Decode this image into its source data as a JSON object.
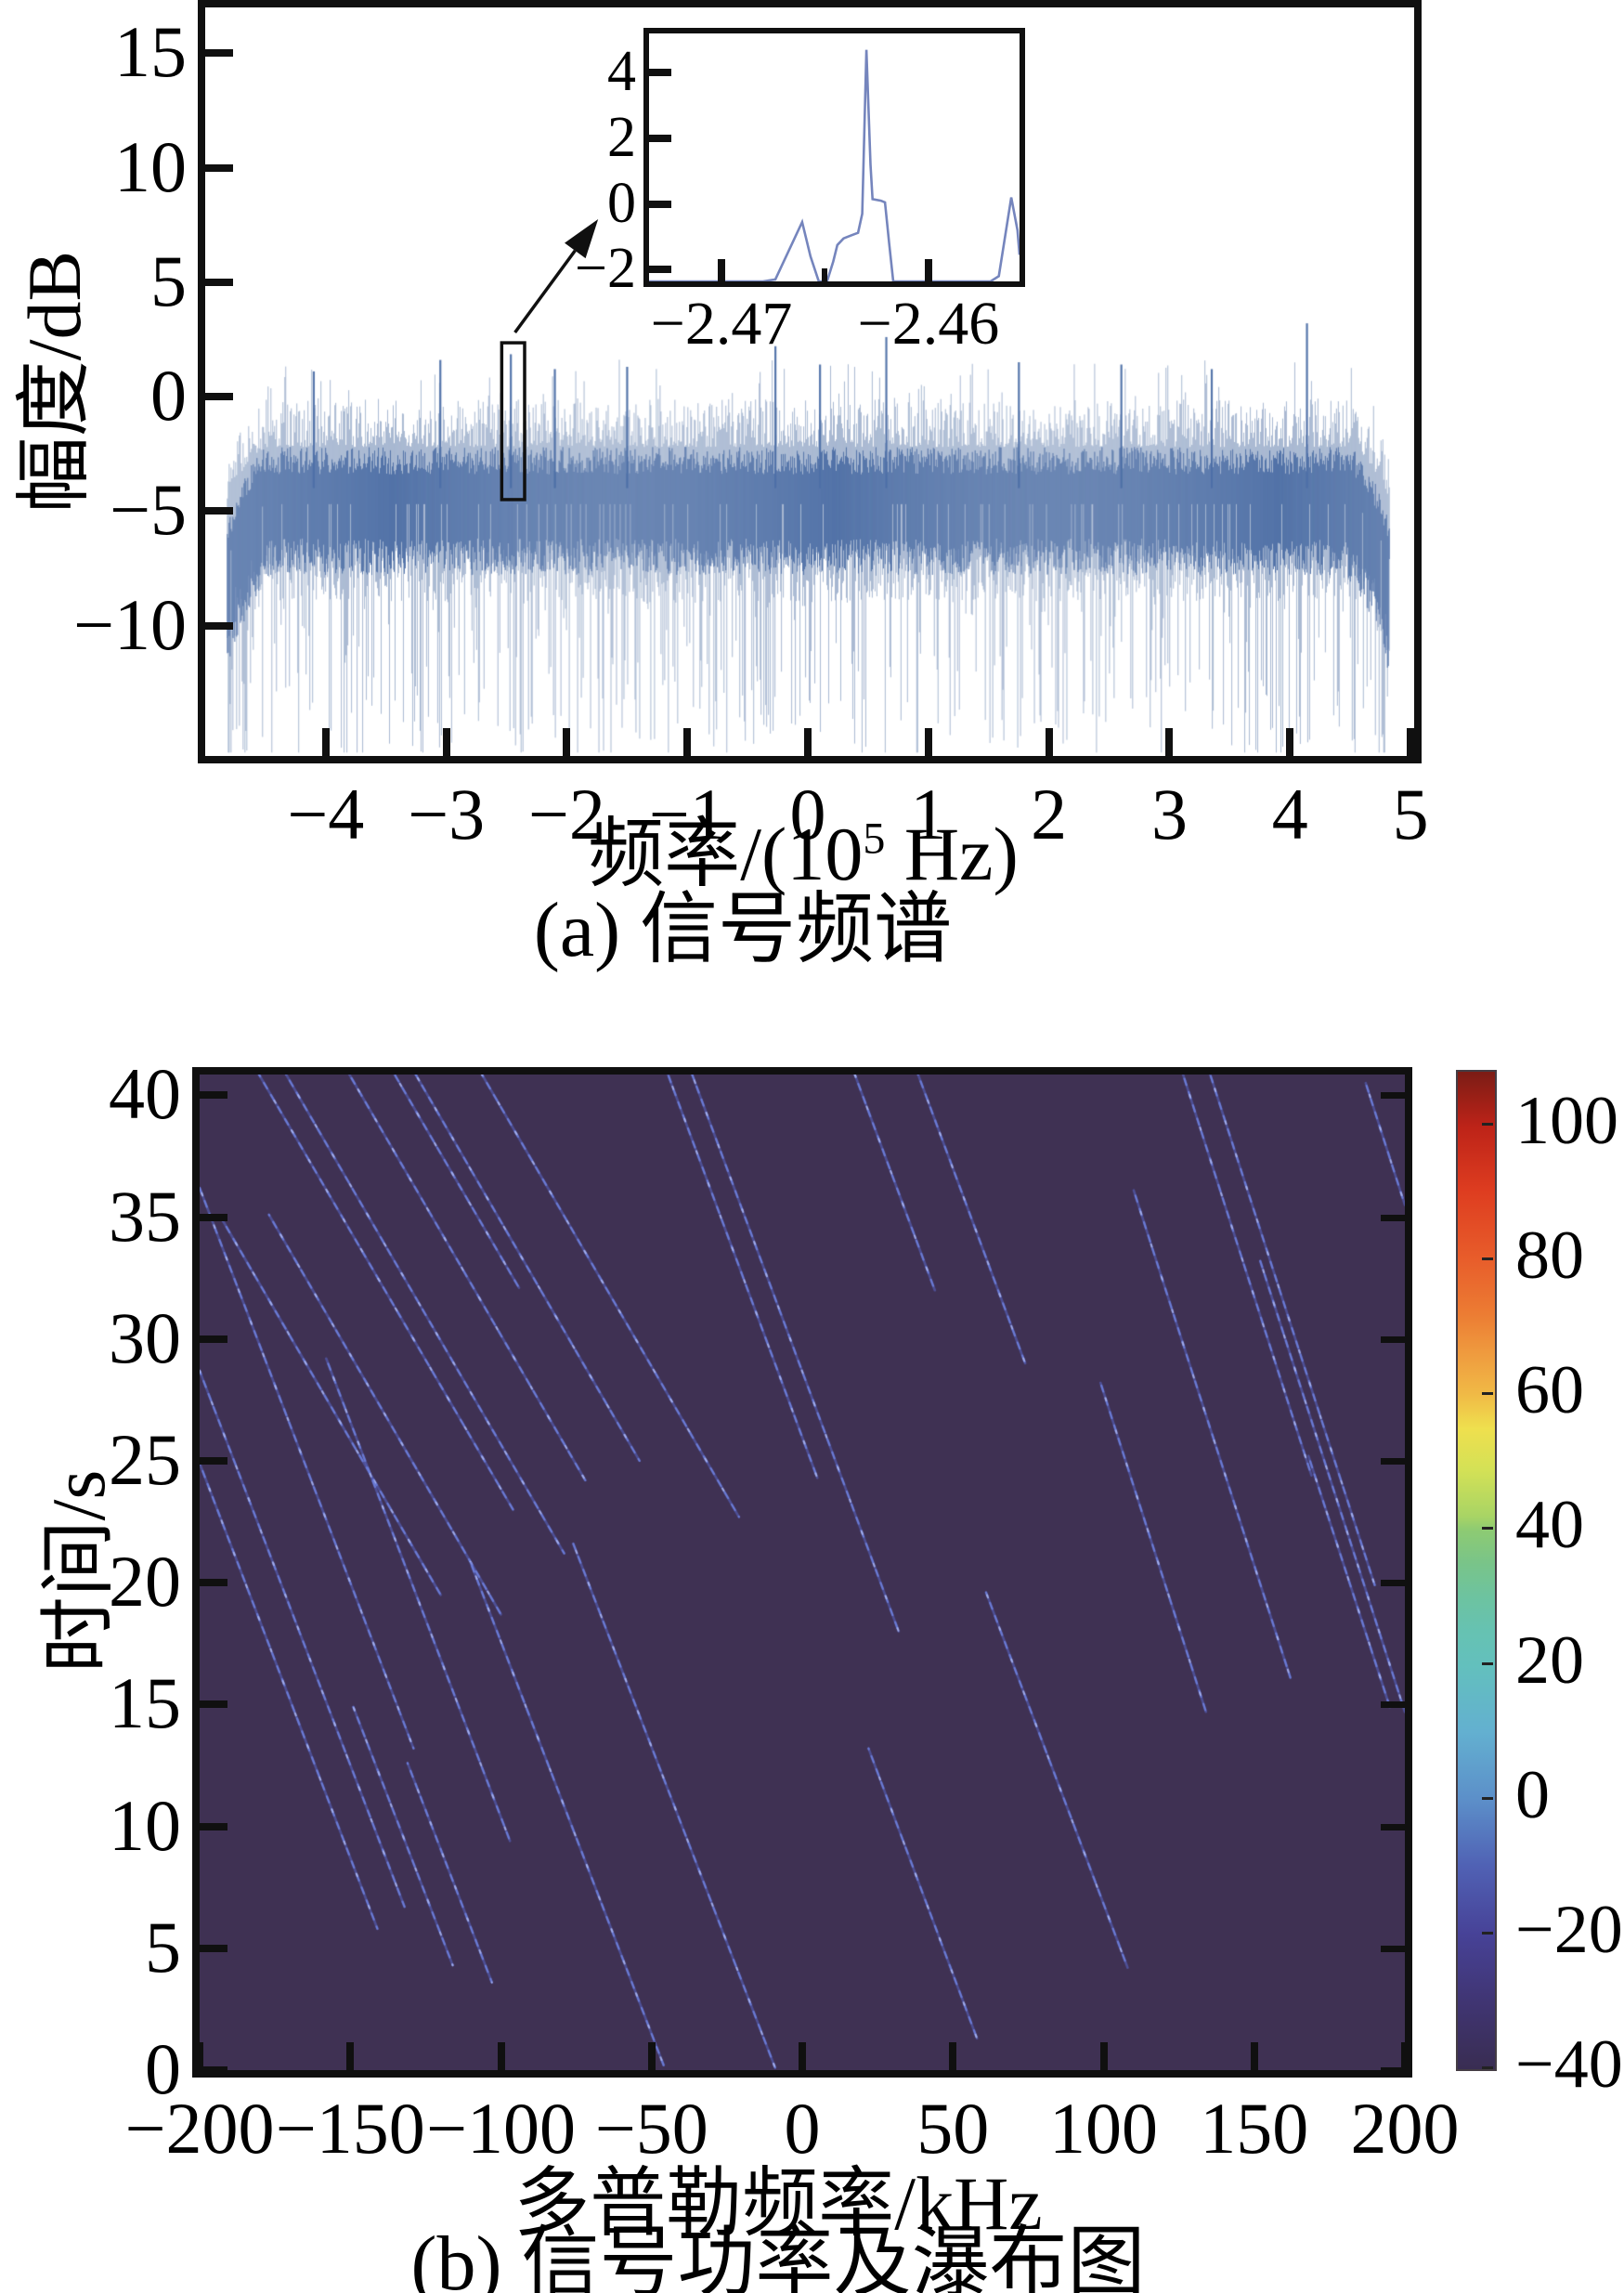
{
  "subplot_a": {
    "ylabel": "幅度/dB",
    "xlabel_pre": "频率/(10",
    "xlabel_sup": "5",
    "xlabel_post": " Hz)",
    "caption": "(a) 信号频谱",
    "line_color": "#4d6fa6",
    "whisker_color": "#5474a6"
  },
  "subplot_b": {
    "ylabel": "时间/s",
    "xlabel": "多普勒频率/kHz",
    "caption": "(b) 信号功率及瀑布图",
    "background_color": "#3f3153",
    "trace_color": "#5b6ace",
    "trace_bright_color": "#a9b4ee"
  },
  "chart_data": [
    {
      "id": "signal-spectrum",
      "type": "line",
      "title": "(a) 信号频谱",
      "xlabel": "频率/(10^5 Hz)",
      "ylabel": "幅度/dB",
      "xlim": [
        -5,
        5.03
      ],
      "ylim": [
        -15.7,
        17
      ],
      "xticks": [
        -4,
        -3,
        -2,
        -1,
        0,
        1,
        2,
        3,
        4,
        5
      ],
      "yticks": [
        15,
        10,
        5,
        0,
        -5,
        -10
      ],
      "noise": {
        "seed": 1337,
        "f_start": -4.82,
        "f_end": 4.82,
        "columns": 1255,
        "base_level_db": -4.3,
        "dense_band_top_db": -2.2,
        "dense_band_bottom_db": -7.0,
        "spike_up_max_db": 3.3,
        "spike_down_min_db": -15.55,
        "edge_taper_start": 4.45
      },
      "marked_peaks": [
        {
          "f": -2.465,
          "top": 1.85
        },
        {
          "f": -0.27,
          "top": 2.2
        },
        {
          "f": 0.1,
          "top": 1.4
        },
        {
          "f": 0.65,
          "top": 2.6
        },
        {
          "f": 1.75,
          "top": 1.5
        },
        {
          "f": 2.6,
          "top": 1.4
        },
        {
          "f": 3.35,
          "top": 1.2
        },
        {
          "f": 4.14,
          "top": 3.2
        },
        {
          "f": -1.5,
          "top": 1.3
        },
        {
          "f": -2.1,
          "top": 1.2
        },
        {
          "f": -3.05,
          "top": 1.6
        },
        {
          "f": -4.1,
          "top": 1.1
        }
      ],
      "annotation": {
        "rect": {
          "f1": -2.54,
          "f2": -2.35,
          "v1": 2.35,
          "v2": -4.5
        },
        "arrow": {
          "from_f": -2.43,
          "from_v": 2.8,
          "to_f": -1.74,
          "to_v": 7.75
        }
      },
      "inset": {
        "xlim": [
          -2.4735,
          -2.4556
        ],
        "ylim": [
          -2.36,
          5.2
        ],
        "xticks": [
          -2.47,
          -2.46
        ],
        "minor_xticks": [
          -2.465
        ],
        "yticks": [
          4,
          2,
          0,
          -2
        ],
        "curve": [
          [
            -2.4735,
            -2.36
          ],
          [
            -2.468,
            -2.36
          ],
          [
            -2.4674,
            -2.3
          ],
          [
            -2.4661,
            -0.55
          ],
          [
            -2.4657,
            -1.6
          ],
          [
            -2.4653,
            -2.36
          ],
          [
            -2.4649,
            -2.36
          ],
          [
            -2.4646,
            -1.75
          ],
          [
            -2.4644,
            -1.25
          ],
          [
            -2.4641,
            -1.05
          ],
          [
            -2.4637,
            -0.95
          ],
          [
            -2.4634,
            -0.88
          ],
          [
            -2.4632,
            -0.3
          ],
          [
            -2.463,
            4.7
          ],
          [
            -2.4628,
            1.2
          ],
          [
            -2.4627,
            0.15
          ],
          [
            -2.4623,
            0.1
          ],
          [
            -2.4621,
            0.05
          ],
          [
            -2.4619,
            -1.2
          ],
          [
            -2.4617,
            -2.36
          ],
          [
            -2.457,
            -2.36
          ],
          [
            -2.4566,
            -2.2
          ],
          [
            -2.456,
            0.2
          ],
          [
            -2.4557,
            -0.8
          ],
          [
            -2.4556,
            -1.55
          ]
        ]
      }
    },
    {
      "id": "signal-power-waterfall",
      "type": "heatmap",
      "title": "(b) 信号功率及瀑布图",
      "xlabel": "多普勒频率/kHz",
      "ylabel": "时间/s",
      "xlim": [
        -200,
        200
      ],
      "ylim": [
        0,
        40.85
      ],
      "xticks": [
        -200,
        -150,
        -100,
        -50,
        0,
        50,
        100,
        150,
        200
      ],
      "yticks": [
        0,
        5,
        10,
        15,
        20,
        25,
        30,
        35,
        40
      ],
      "background_value_db": -36,
      "lines": [
        [
          -181,
          41,
          -96,
          23.0
        ],
        [
          -172,
          41,
          -79,
          21.2
        ],
        [
          -151,
          41,
          -72,
          24.2
        ],
        [
          -136,
          41,
          -94,
          32.1
        ],
        [
          -129,
          41,
          -54,
          25.0
        ],
        [
          -107,
          41,
          -21,
          22.7
        ],
        [
          -193,
          35.0,
          -120,
          19.5
        ],
        [
          -177,
          35.1,
          -100,
          18.7
        ],
        [
          -45,
          41,
          5,
          24.3
        ],
        [
          -37,
          41,
          32,
          18.0
        ],
        [
          17,
          41,
          44,
          32.0
        ],
        [
          38,
          41,
          74,
          29.0
        ],
        [
          126,
          41,
          169,
          24.4
        ],
        [
          135,
          41,
          190,
          19.9
        ],
        [
          187,
          40.5,
          200,
          35.5
        ],
        [
          -200,
          36.2,
          -129,
          13.2
        ],
        [
          -200,
          28.7,
          -132,
          6.7
        ],
        [
          -200,
          24.9,
          -141,
          5.8
        ],
        [
          -158,
          29.2,
          -97,
          9.4
        ],
        [
          -110,
          20.8,
          -46,
          0.2
        ],
        [
          -76,
          21.6,
          -9,
          0.1
        ],
        [
          -149,
          14.9,
          -116,
          4.3
        ],
        [
          -131,
          12.6,
          -103,
          3.6
        ],
        [
          110,
          36.1,
          162,
          16.1
        ],
        [
          99,
          28.2,
          134,
          14.7
        ],
        [
          152,
          33.2,
          200,
          14.7
        ],
        [
          61,
          19.6,
          108,
          4.2
        ],
        [
          22,
          13.2,
          58,
          1.3
        ],
        [
          168,
          25.2,
          195,
          14.9
        ]
      ],
      "colorbar": {
        "min": -40,
        "max": 108,
        "ticks": [
          100,
          80,
          60,
          40,
          20,
          0,
          -20,
          -40
        ],
        "gradient_stops": [
          [
            0.0,
            "#7b1c15"
          ],
          [
            0.055,
            "#bd2318"
          ],
          [
            0.12,
            "#de3d20"
          ],
          [
            0.19,
            "#e85e2b"
          ],
          [
            0.243,
            "#ec7c33"
          ],
          [
            0.284,
            "#ef9c3f"
          ],
          [
            0.324,
            "#f0ba46"
          ],
          [
            0.358,
            "#efe04e"
          ],
          [
            0.4,
            "#d3e156"
          ],
          [
            0.446,
            "#a8d465"
          ],
          [
            0.459,
            "#8ecb72"
          ],
          [
            0.493,
            "#79c489"
          ],
          [
            0.527,
            "#6dc3a0"
          ],
          [
            0.561,
            "#66c2b2"
          ],
          [
            0.595,
            "#63c0bd"
          ],
          [
            0.662,
            "#63b0d0"
          ],
          [
            0.73,
            "#5c8fc9"
          ],
          [
            0.797,
            "#5061b4"
          ],
          [
            0.865,
            "#474297"
          ],
          [
            0.932,
            "#403573"
          ],
          [
            1.0,
            "#392d52"
          ]
        ]
      }
    }
  ]
}
